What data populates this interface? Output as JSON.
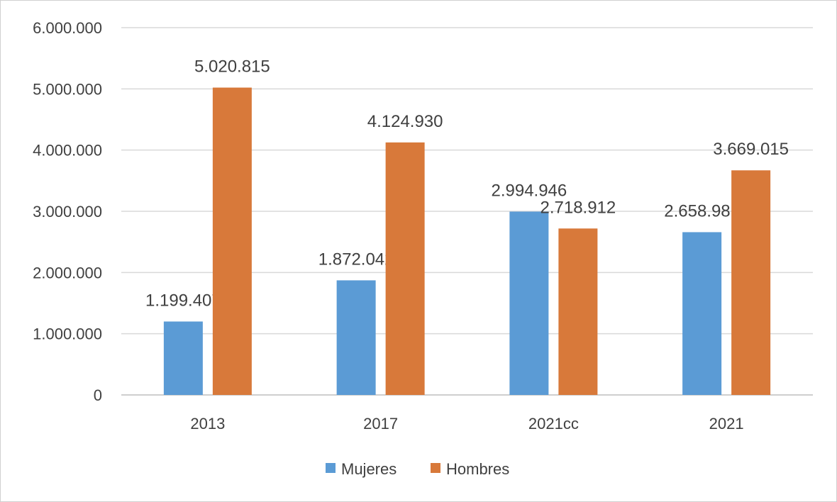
{
  "chart_data": {
    "type": "bar",
    "title": "",
    "xlabel": "",
    "ylabel": "",
    "categories": [
      "2013",
      "2017",
      "2021cc",
      "2021"
    ],
    "series": [
      {
        "name": "Mujeres",
        "color": "#5B9BD5",
        "values": [
          1199407,
          1872042,
          2994946,
          2658981
        ],
        "labels": [
          "1.199.407",
          "1.872.042",
          "2.994.946",
          "2.658.981"
        ]
      },
      {
        "name": "Hombres",
        "color": "#D8793A",
        "values": [
          5020815,
          4124930,
          2718912,
          3669015
        ],
        "labels": [
          "5.020.815",
          "4.124.930",
          "2.718.912",
          "3.669.015"
        ]
      }
    ],
    "ylim": [
      0,
      6000000
    ],
    "yticks": [
      0,
      1000000,
      2000000,
      3000000,
      4000000,
      5000000,
      6000000
    ],
    "ytick_labels": [
      "0",
      "1.000.000",
      "2.000.000",
      "3.000.000",
      "4.000.000",
      "5.000.000",
      "6.000.000"
    ],
    "grid": true,
    "legend": "bottom-center"
  }
}
